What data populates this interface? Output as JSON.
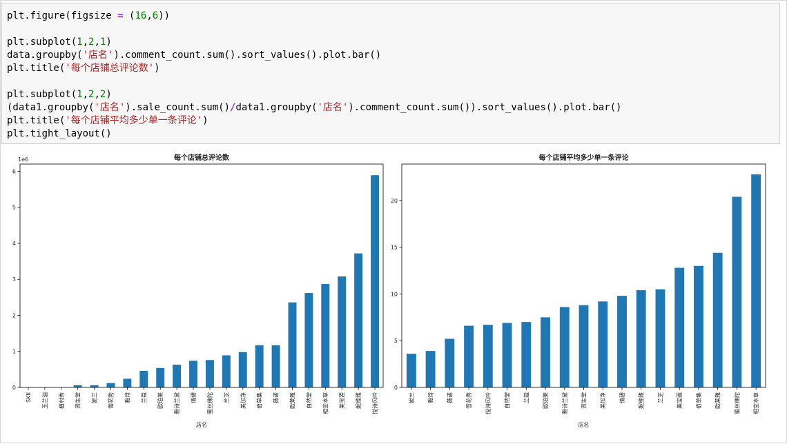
{
  "code_cell": {
    "lines": [
      [
        {
          "t": "plt.figure(figsize "
        },
        {
          "t": "=",
          "c": "op"
        },
        {
          "t": " ("
        },
        {
          "t": "16",
          "c": "num"
        },
        {
          "t": ","
        },
        {
          "t": "6",
          "c": "num"
        },
        {
          "t": "))"
        }
      ],
      [],
      [
        {
          "t": "plt.subplot("
        },
        {
          "t": "1",
          "c": "num"
        },
        {
          "t": ","
        },
        {
          "t": "2",
          "c": "num"
        },
        {
          "t": ","
        },
        {
          "t": "1",
          "c": "num"
        },
        {
          "t": ")"
        }
      ],
      [
        {
          "t": "data.groupby("
        },
        {
          "t": "'店名'",
          "c": "str"
        },
        {
          "t": ").comment_count.sum().sort_values().plot.bar()"
        }
      ],
      [
        {
          "t": "plt.title("
        },
        {
          "t": "'每个店铺总评论数'",
          "c": "str"
        },
        {
          "t": ")"
        }
      ],
      [],
      [
        {
          "t": "plt.subplot("
        },
        {
          "t": "1",
          "c": "num"
        },
        {
          "t": ","
        },
        {
          "t": "2",
          "c": "num"
        },
        {
          "t": ","
        },
        {
          "t": "2",
          "c": "num"
        },
        {
          "t": ")"
        }
      ],
      [
        {
          "t": "(data1.groupby("
        },
        {
          "t": "'店名'",
          "c": "str"
        },
        {
          "t": ").sale_count.sum()"
        },
        {
          "t": "/",
          "c": "op"
        },
        {
          "t": "data1.groupby("
        },
        {
          "t": "'店名'",
          "c": "str"
        },
        {
          "t": ").comment_count.sum()).sort_values().plot.bar()"
        }
      ],
      [
        {
          "t": "plt.title("
        },
        {
          "t": "'每个店铺平均多少单一条评论'",
          "c": "str"
        },
        {
          "t": ")"
        }
      ],
      [
        {
          "t": "plt.tight_layout()"
        }
      ]
    ]
  },
  "chart_data": [
    {
      "type": "bar",
      "title": "每个店铺总评论数",
      "xlabel": "店名",
      "ylabel": "",
      "y_offset_label": "1e6",
      "ylim": [
        0,
        6.2
      ],
      "yticks": [
        0,
        1,
        2,
        3,
        4,
        5,
        6
      ],
      "categories": [
        "SKII",
        "玉兰油",
        "植村秀",
        "资生堂",
        "妮兰",
        "雪花秀",
        "雅诗",
        "兰蔻",
        "欧珀莱",
        "雅诗兰黛",
        "倩碧",
        "蜜丝佛陀",
        "兰芝",
        "美加净",
        "佰草集",
        "薇诺",
        "欧莱雅",
        "自然堂",
        "相宜本草",
        "美宝莲",
        "妮维雅",
        "悦诗风吟"
      ],
      "values": [
        0.0,
        0.0,
        0.0,
        0.06,
        0.06,
        0.12,
        0.24,
        0.46,
        0.54,
        0.63,
        0.74,
        0.76,
        0.89,
        0.98,
        1.17,
        1.17,
        2.36,
        2.62,
        2.87,
        3.08,
        3.72,
        5.89
      ],
      "bar_color": "#1f77b4"
    },
    {
      "type": "bar",
      "title": "每个店铺平均多少单一条评论",
      "xlabel": "店名",
      "ylabel": "",
      "ylim": [
        0,
        23.9
      ],
      "yticks": [
        0,
        5,
        10,
        15,
        20
      ],
      "categories": [
        "妮兰",
        "雅诗",
        "薇诺",
        "雪花秀",
        "悦诗风吟",
        "自然堂",
        "兰蔻",
        "欧珀莱",
        "雅诗兰黛",
        "资生堂",
        "美加净",
        "倩碧",
        "妮维雅",
        "兰芝",
        "美宝莲",
        "佰草集",
        "欧莱雅",
        "蜜丝佛陀",
        "相宜本草"
      ],
      "values": [
        3.6,
        3.9,
        5.2,
        6.6,
        6.7,
        6.9,
        7.0,
        7.5,
        8.6,
        8.8,
        9.2,
        9.8,
        10.4,
        10.5,
        12.8,
        13.0,
        14.4,
        20.4,
        22.8
      ],
      "bar_color": "#1f77b4"
    }
  ]
}
